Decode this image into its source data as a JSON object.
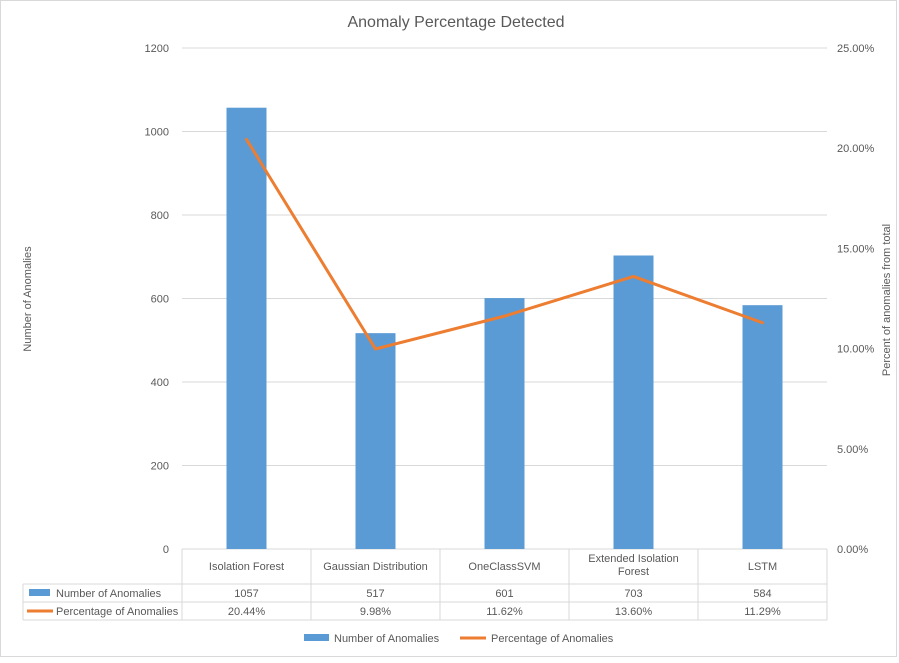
{
  "chart_data": {
    "type": "bar",
    "title": "Anomaly Percentage Detected",
    "categories": [
      "Isolation Forest",
      "Gaussian Distribution",
      "OneClassSVM",
      "Extended Isolation Forest",
      "LSTM"
    ],
    "category_lines": [
      [
        "Isolation Forest"
      ],
      [
        "Gaussian Distribution"
      ],
      [
        "OneClassSVM"
      ],
      [
        "Extended Isolation",
        "Forest"
      ],
      [
        "LSTM"
      ]
    ],
    "series": [
      {
        "name": "Number of Anomalies",
        "type": "bar",
        "axis": "left",
        "color": "#5b9bd5",
        "values": [
          1057,
          517,
          601,
          703,
          584
        ],
        "table_values": [
          "1057",
          "517",
          "601",
          "703",
          "584"
        ]
      },
      {
        "name": "Percentage of Anomalies",
        "type": "line",
        "axis": "right",
        "color": "#ed7d31",
        "values": [
          20.44,
          9.98,
          11.62,
          13.6,
          11.29
        ],
        "table_values": [
          "20.44%",
          "9.98%",
          "11.62%",
          "13.60%",
          "11.29%"
        ]
      }
    ],
    "ylabel": "Number  of Anomalies",
    "y2label": "Percent of anomalies from total",
    "ylim": [
      0,
      1200
    ],
    "y2lim": [
      0,
      25
    ],
    "yticks": [
      0,
      200,
      400,
      600,
      800,
      1000,
      1200
    ],
    "y2ticks": [
      0,
      5,
      10,
      15,
      20,
      25
    ],
    "yticklabels": [
      "0",
      "200",
      "400",
      "600",
      "800",
      "1000",
      "1200"
    ],
    "y2ticklabels": [
      "0.00%",
      "5.00%",
      "10.00%",
      "15.00%",
      "20.00%",
      "25.00%"
    ],
    "grid": true,
    "data_table": true,
    "legend_position": "bottom"
  }
}
